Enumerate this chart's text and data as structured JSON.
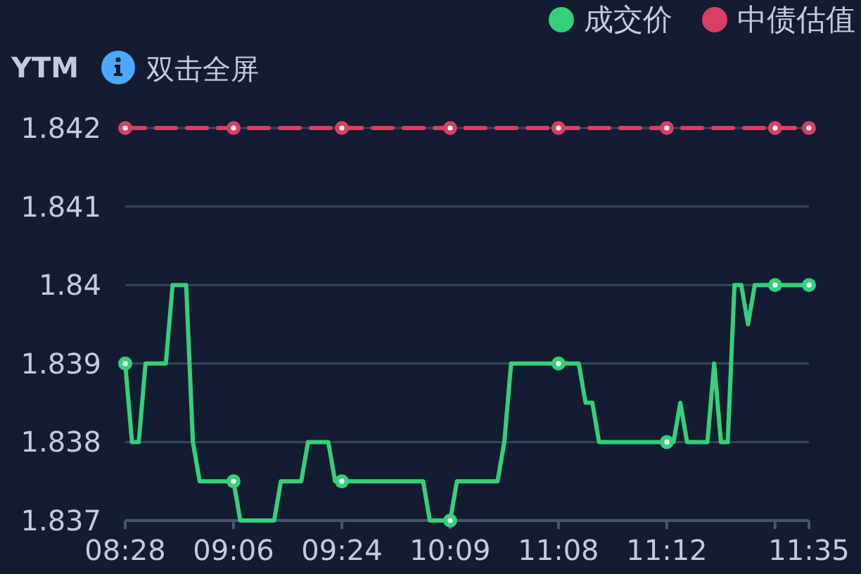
{
  "chart_data": {
    "type": "line",
    "ylabel": "YTM",
    "annotations": [
      "双击全屏"
    ],
    "categories": [
      "08:28",
      null,
      null,
      null,
      null,
      null,
      null,
      null,
      null,
      null,
      null,
      null,
      null,
      null,
      null,
      null,
      "09:06",
      null,
      null,
      null,
      null,
      null,
      null,
      null,
      null,
      null,
      null,
      null,
      null,
      null,
      null,
      null,
      "09:24",
      null,
      null,
      null,
      null,
      null,
      null,
      null,
      null,
      null,
      null,
      null,
      null,
      null,
      null,
      null,
      "10:09",
      null,
      null,
      null,
      null,
      null,
      null,
      null,
      null,
      null,
      null,
      null,
      null,
      null,
      null,
      null,
      "11:08",
      null,
      null,
      null,
      null,
      null,
      null,
      null,
      null,
      null,
      null,
      null,
      null,
      null,
      null,
      null,
      "11:12",
      null,
      null,
      null,
      null,
      null,
      null,
      null,
      null,
      null,
      null,
      null,
      null,
      null,
      null,
      null,
      null,
      null,
      null,
      null,
      null,
      "11:35"
    ],
    "series": [
      {
        "name": "成交价",
        "color": "#33d17a",
        "line_style": "solid",
        "values": [
          1.839,
          1.838,
          1.838,
          1.839,
          1.839,
          1.839,
          1.839,
          1.84,
          1.84,
          1.84,
          1.838,
          1.8375,
          1.8375,
          1.8375,
          1.8375,
          1.8375,
          1.8375,
          1.837,
          1.837,
          1.837,
          1.837,
          1.837,
          1.837,
          1.8375,
          1.8375,
          1.8375,
          1.8375,
          1.838,
          1.838,
          1.838,
          1.838,
          1.8375,
          1.8375,
          1.8375,
          1.8375,
          1.8375,
          1.8375,
          1.8375,
          1.8375,
          1.8375,
          1.8375,
          1.8375,
          1.8375,
          1.8375,
          1.8375,
          1.837,
          1.837,
          1.837,
          1.837,
          1.8375,
          1.8375,
          1.8375,
          1.8375,
          1.8375,
          1.8375,
          1.8375,
          1.838,
          1.839,
          1.839,
          1.839,
          1.839,
          1.839,
          1.839,
          1.839,
          1.839,
          1.839,
          1.839,
          1.839,
          1.8385,
          1.8385,
          1.838,
          1.838,
          1.838,
          1.838,
          1.838,
          1.838,
          1.838,
          1.838,
          1.838,
          1.838,
          1.838,
          1.838,
          1.8385,
          1.838,
          1.838,
          1.838,
          1.838,
          1.839,
          1.838,
          1.838,
          1.84,
          1.84,
          1.8395,
          1.84,
          1.84,
          1.84,
          1.84,
          1.84,
          1.84,
          1.84,
          1.84,
          1.84
        ]
      },
      {
        "name": "中债估值",
        "color": "#d63f66",
        "line_style": "dashed",
        "values": [
          1.842,
          1.842,
          1.842,
          1.842,
          1.842,
          1.842,
          1.842,
          1.842,
          1.842,
          1.842,
          1.842,
          1.842,
          1.842,
          1.842,
          1.842,
          1.842,
          1.842,
          1.842,
          1.842,
          1.842,
          1.842,
          1.842,
          1.842,
          1.842,
          1.842,
          1.842,
          1.842,
          1.842,
          1.842,
          1.842,
          1.842,
          1.842,
          1.842,
          1.842,
          1.842,
          1.842,
          1.842,
          1.842,
          1.842,
          1.842,
          1.842,
          1.842,
          1.842,
          1.842,
          1.842,
          1.842,
          1.842,
          1.842,
          1.842,
          1.842,
          1.842,
          1.842,
          1.842,
          1.842,
          1.842,
          1.842,
          1.842,
          1.842,
          1.842,
          1.842,
          1.842,
          1.842,
          1.842,
          1.842,
          1.842,
          1.842,
          1.842,
          1.842,
          1.842,
          1.842,
          1.842,
          1.842,
          1.842,
          1.842,
          1.842,
          1.842,
          1.842,
          1.842,
          1.842,
          1.842,
          1.842,
          1.842,
          1.842,
          1.842,
          1.842,
          1.842,
          1.842,
          1.842,
          1.842,
          1.842,
          1.842,
          1.842,
          1.842,
          1.842,
          1.842,
          1.842,
          1.842,
          1.842,
          1.842,
          1.842,
          1.842,
          1.842
        ]
      }
    ],
    "ylim": [
      1.837,
      1.842
    ],
    "yticks": [
      1.837,
      1.838,
      1.839,
      1.84,
      1.841,
      1.842
    ],
    "grid": "y",
    "legend": "top right"
  }
}
